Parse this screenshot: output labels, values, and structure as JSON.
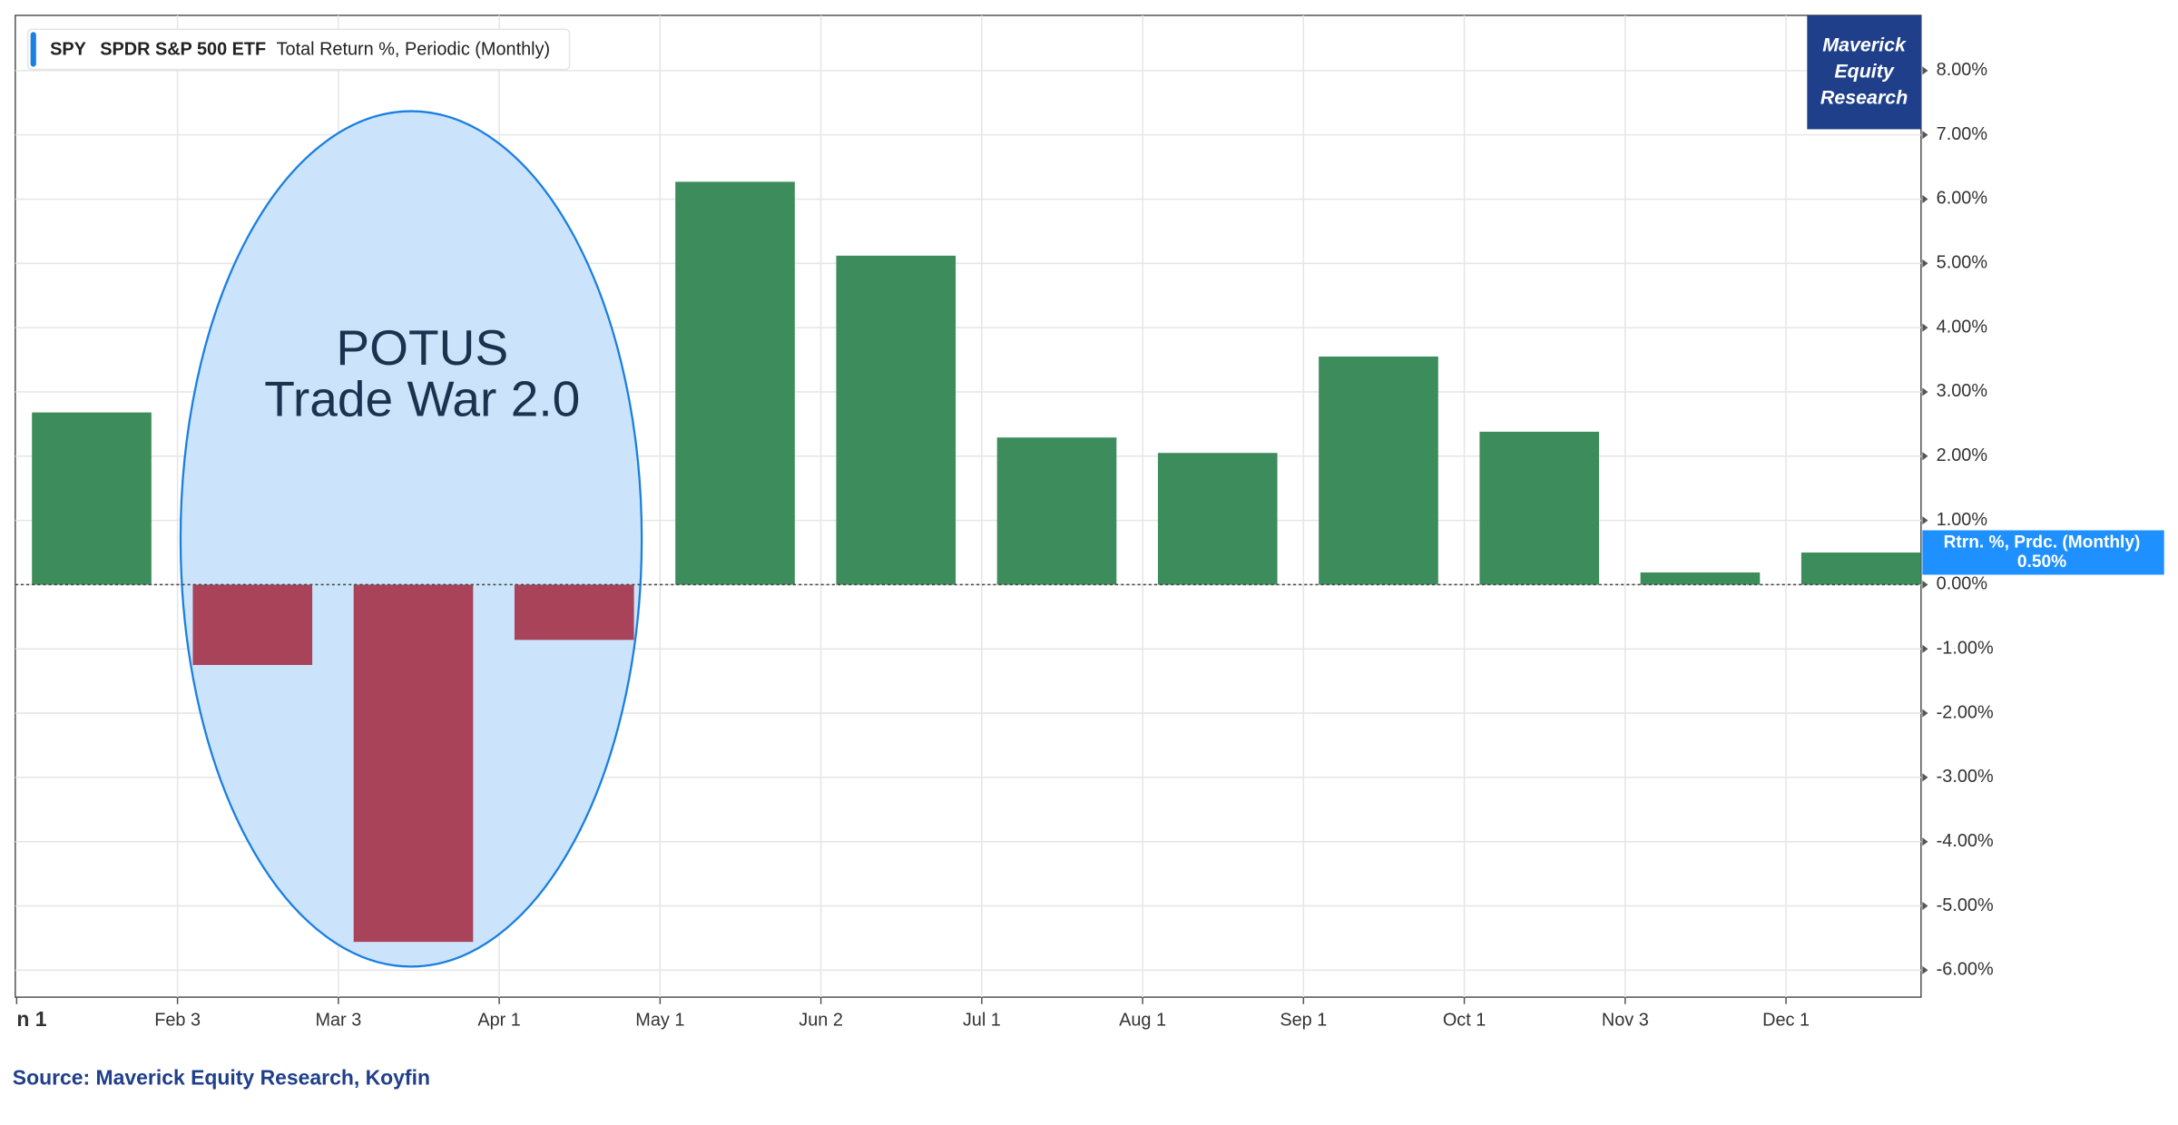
{
  "chart_data": {
    "type": "bar",
    "legend": {
      "ticker": "SPY",
      "name": "SPDR S&P 500 ETF",
      "metric": "Total Return %, Periodic (Monthly)"
    },
    "annotation": [
      "POTUS",
      "Trade War 2.0"
    ],
    "logo": [
      "Maverick",
      "Equity",
      "Research"
    ],
    "source": "Source: Maverick Equity Research, Koyfin",
    "categories": [
      "n 1",
      "Feb 3",
      "Mar 3",
      "Apr 1",
      "May 1",
      "Jun 2",
      "Jul 1",
      "Aug 1",
      "Sep 1",
      "Oct 1",
      "Nov 3",
      "Dec 1"
    ],
    "values": [
      2.68,
      -1.25,
      -5.56,
      -0.86,
      6.27,
      5.12,
      2.29,
      2.05,
      3.55,
      2.38,
      0.19,
      0.5
    ],
    "positive_color": "#3d8c5c",
    "negative_color": "#a8435a",
    "last_label": {
      "name": "Rtrn. %, Prdc. (Monthly)",
      "text": "0.50%"
    },
    "ylim": [
      -6.42,
      8.86
    ],
    "yticks": [
      {
        "value": 8,
        "label": "8.00%"
      },
      {
        "value": 7,
        "label": "7.00%"
      },
      {
        "value": 6,
        "label": "6.00%"
      },
      {
        "value": 5,
        "label": "5.00%"
      },
      {
        "value": 4,
        "label": "4.00%"
      },
      {
        "value": 3,
        "label": "3.00%"
      },
      {
        "value": 2,
        "label": "2.00%"
      },
      {
        "value": 1,
        "label": "1.00%"
      },
      {
        "value": 0,
        "label": "0.00%"
      },
      {
        "value": -1,
        "label": "-1.00%"
      },
      {
        "value": -2,
        "label": "-2.00%"
      },
      {
        "value": -3,
        "label": "-3.00%"
      },
      {
        "value": -4,
        "label": "-4.00%"
      },
      {
        "value": -5,
        "label": "-5.00%"
      },
      {
        "value": -6,
        "label": "-6.00%"
      }
    ],
    "grid": true
  }
}
